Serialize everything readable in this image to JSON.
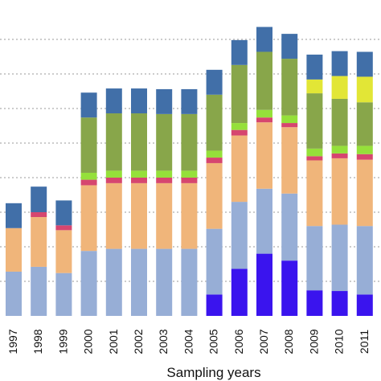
{
  "chart_data": {
    "type": "bar",
    "stacked": true,
    "xlabel": "Sampling years",
    "ylabel": "",
    "title": "",
    "grid": "horizontal-dotted",
    "ylim": [
      0,
      420
    ],
    "yticks": [
      0,
      50,
      100,
      150,
      200,
      250,
      300,
      350,
      400
    ],
    "categories": [
      "1997",
      "1998",
      "1999",
      "2000",
      "2001",
      "2002",
      "2003",
      "2004",
      "2005",
      "2006",
      "2007",
      "2008",
      "2009",
      "2010",
      "2011"
    ],
    "series": [
      {
        "color": "#3a14ee",
        "values": [
          0,
          0,
          0,
          0,
          0,
          0,
          0,
          0,
          31,
          68,
          90,
          80,
          37,
          36,
          31
        ]
      },
      {
        "color": "#97aed6",
        "values": [
          64,
          71,
          62,
          94,
          97,
          97,
          97,
          97,
          95,
          97,
          94,
          97,
          93,
          96,
          99
        ]
      },
      {
        "color": "#f0b57a",
        "values": [
          63,
          72,
          62,
          95,
          95,
          95,
          95,
          95,
          95,
          96,
          96,
          96,
          95,
          96,
          96
        ]
      },
      {
        "color": "#d6466f",
        "values": [
          0,
          7,
          7,
          8,
          8,
          8,
          8,
          8,
          8,
          8,
          7,
          6,
          6,
          7,
          8
        ]
      },
      {
        "color": "#95e03a",
        "values": [
          0,
          0,
          0,
          10,
          10,
          10,
          10,
          10,
          10,
          10,
          11,
          11,
          11,
          11,
          12
        ]
      },
      {
        "color": "#88a64a",
        "values": [
          0,
          0,
          0,
          80,
          83,
          83,
          82,
          82,
          81,
          84,
          84,
          82,
          80,
          68,
          63
        ]
      },
      {
        "color": "#e2e636",
        "values": [
          0,
          0,
          0,
          0,
          0,
          0,
          0,
          0,
          0,
          0,
          0,
          0,
          20,
          33,
          37
        ]
      },
      {
        "color": "#416fa8",
        "values": [
          36,
          37,
          36,
          36,
          36,
          36,
          36,
          36,
          36,
          36,
          36,
          36,
          36,
          36,
          36
        ]
      }
    ]
  }
}
